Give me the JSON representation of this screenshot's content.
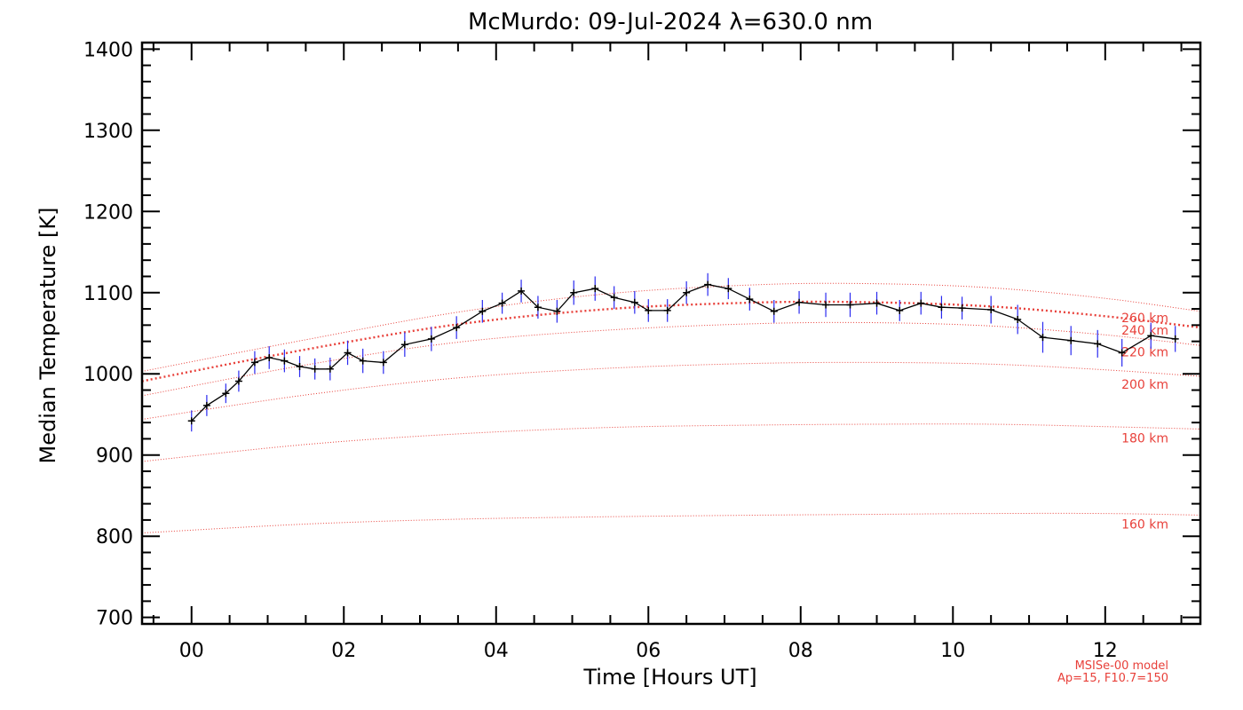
{
  "chart_data": {
    "type": "line",
    "title": "McMurdo: 09-Jul-2024 λ=630.0 nm",
    "xlabel": "Time [Hours UT]",
    "ylabel": "Median Temperature [K]",
    "xlim": [
      -0.65,
      13.25
    ],
    "ylim": [
      692,
      1408
    ],
    "x_ticks": [
      0,
      2,
      4,
      6,
      8,
      10,
      12
    ],
    "x_tick_labels": [
      "00",
      "02",
      "04",
      "06",
      "08",
      "10",
      "12"
    ],
    "y_ticks": [
      700,
      800,
      900,
      1000,
      1100,
      1200,
      1300,
      1400
    ],
    "y_tick_labels": [
      "700",
      "800",
      "900",
      "1000",
      "1100",
      "1200",
      "1300",
      "1400"
    ],
    "grid": false,
    "colors": {
      "measurement_line": "#000000",
      "error_bar": "#2a2af0",
      "model": "#e8403a"
    },
    "measurements": {
      "x": [
        0.0,
        0.2,
        0.45,
        0.62,
        0.83,
        1.02,
        1.22,
        1.42,
        1.62,
        1.82,
        2.05,
        2.25,
        2.52,
        2.8,
        3.15,
        3.48,
        3.82,
        4.08,
        4.33,
        4.55,
        4.8,
        5.02,
        5.3,
        5.55,
        5.82,
        6.0,
        6.25,
        6.5,
        6.78,
        7.05,
        7.33,
        7.65,
        7.98,
        8.33,
        8.65,
        9.0,
        9.3,
        9.58,
        9.85,
        10.12,
        10.5,
        10.85,
        11.18,
        11.55,
        11.9,
        12.22,
        12.6,
        12.92
      ],
      "y": [
        942,
        961,
        976,
        991,
        1014,
        1020,
        1016,
        1009,
        1006,
        1006,
        1026,
        1016,
        1014,
        1036,
        1043,
        1057,
        1077,
        1087,
        1102,
        1082,
        1077,
        1100,
        1105,
        1094,
        1088,
        1078,
        1078,
        1100,
        1110,
        1105,
        1092,
        1077,
        1088,
        1085,
        1085,
        1087,
        1078,
        1087,
        1082,
        1081,
        1079,
        1067,
        1045,
        1041,
        1037,
        1026,
        1047,
        1043
      ],
      "error": [
        13,
        13,
        12,
        13,
        14,
        14,
        14,
        13,
        13,
        14,
        15,
        15,
        14,
        15,
        15,
        14,
        14,
        13,
        14,
        14,
        14,
        15,
        15,
        14,
        14,
        14,
        14,
        14,
        14,
        13,
        14,
        14,
        14,
        15,
        15,
        14,
        13,
        14,
        14,
        14,
        17,
        18,
        19,
        18,
        17,
        17,
        16,
        16
      ]
    },
    "model_curves": [
      {
        "label": "260 km",
        "x": [
          -0.65,
          1.5,
          3.5,
          5.5,
          7.5,
          9.0,
          10.5,
          12.0,
          13.25
        ],
        "y": [
          1003,
          1042,
          1076,
          1099,
          1110,
          1111,
          1106,
          1093,
          1077
        ]
      },
      {
        "label": "240 km",
        "x": [
          -0.65,
          1.5,
          3.5,
          5.5,
          7.5,
          9.0,
          10.5,
          12.0,
          13.25
        ],
        "y": [
          991,
          1030,
          1061,
          1080,
          1088,
          1088,
          1083,
          1071,
          1057
        ],
        "emphasized": true
      },
      {
        "label": "220 km",
        "x": [
          -0.65,
          1.5,
          3.5,
          5.5,
          7.5,
          9.0,
          10.5,
          12.0,
          13.25
        ],
        "y": [
          973,
          1011,
          1039,
          1054,
          1062,
          1063,
          1059,
          1048,
          1035
        ]
      },
      {
        "label": "200 km",
        "x": [
          -0.65,
          1.5,
          3.5,
          5.5,
          7.5,
          9.0,
          10.5,
          12.0,
          13.25
        ],
        "y": [
          944,
          974,
          995,
          1007,
          1013,
          1014,
          1012,
          1005,
          997
        ]
      },
      {
        "label": "180 km",
        "x": [
          -0.65,
          1.5,
          3.5,
          5.5,
          7.5,
          9.0,
          10.5,
          12.0,
          13.25
        ],
        "y": [
          892,
          913,
          926,
          934,
          937,
          938,
          938,
          935,
          932
        ]
      },
      {
        "label": "160 km",
        "x": [
          -0.65,
          1.5,
          3.5,
          5.5,
          7.5,
          9.0,
          10.5,
          12.0,
          13.25
        ],
        "y": [
          804,
          815,
          821,
          824,
          826,
          827,
          828,
          828,
          826
        ]
      }
    ],
    "model_label_y": [
      1069,
      1054,
      1027,
      987,
      921,
      815
    ],
    "model_note": [
      "MSISe-00 model",
      "Ap=15, F10.7=150"
    ]
  }
}
